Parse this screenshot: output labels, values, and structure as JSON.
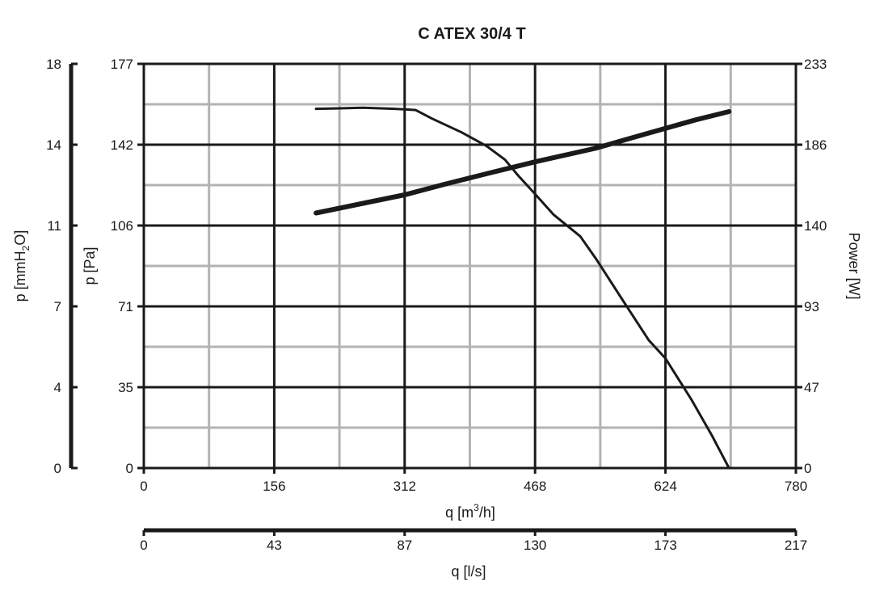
{
  "chart_data": {
    "type": "line",
    "title": "C ATEX 30/4 T",
    "x_axis_primary": {
      "label_parts": {
        "pre": "q [m",
        "sup": "3",
        "post": "/h]"
      },
      "ticks": [
        "0",
        "156",
        "312",
        "468",
        "624",
        "780"
      ],
      "range": [
        0,
        780
      ]
    },
    "x_axis_secondary": {
      "label": "q [l/s]",
      "ticks": [
        "0",
        "43",
        "87",
        "130",
        "173",
        "217"
      ]
    },
    "y_axis_left_outer": {
      "label_parts": {
        "pre": "p [mmH",
        "sub": "2",
        "post": "O]"
      },
      "ticks": [
        "0",
        "4",
        "7",
        "11",
        "14",
        "18"
      ]
    },
    "y_axis_left_inner": {
      "label": "p [Pa]",
      "ticks": [
        "0",
        "35",
        "71",
        "106",
        "142",
        "177"
      ],
      "range": [
        0,
        177
      ]
    },
    "y_axis_right": {
      "label": "Power [W]",
      "ticks": [
        "0",
        "47",
        "93",
        "140",
        "186",
        "233"
      ],
      "range": [
        0,
        233
      ]
    },
    "grid": true,
    "series": [
      {
        "axis": "pressure",
        "color": "#1a1a1a",
        "points": [
          [
            206,
            157.3
          ],
          [
            230,
            157.5
          ],
          [
            262,
            157.8
          ],
          [
            300,
            157.3
          ],
          [
            325,
            156.8
          ],
          [
            345,
            153
          ],
          [
            380,
            147
          ],
          [
            410,
            141
          ],
          [
            432,
            135
          ],
          [
            448,
            128
          ],
          [
            468,
            120
          ],
          [
            490,
            111
          ],
          [
            522,
            101.5
          ],
          [
            542,
            91
          ],
          [
            572,
            74
          ],
          [
            604,
            56
          ],
          [
            624,
            48
          ],
          [
            655,
            30
          ],
          [
            680,
            14
          ],
          [
            700,
            0
          ]
        ]
      },
      {
        "axis": "power",
        "color": "#1a1a1a",
        "points": [
          [
            206,
            147
          ],
          [
            260,
            152.4
          ],
          [
            312,
            157.5
          ],
          [
            360,
            163.6
          ],
          [
            412,
            169.9
          ],
          [
            468,
            176.5
          ],
          [
            540,
            184.3
          ],
          [
            600,
            192.6
          ],
          [
            660,
            200.7
          ],
          [
            700,
            205.5
          ]
        ]
      }
    ]
  }
}
